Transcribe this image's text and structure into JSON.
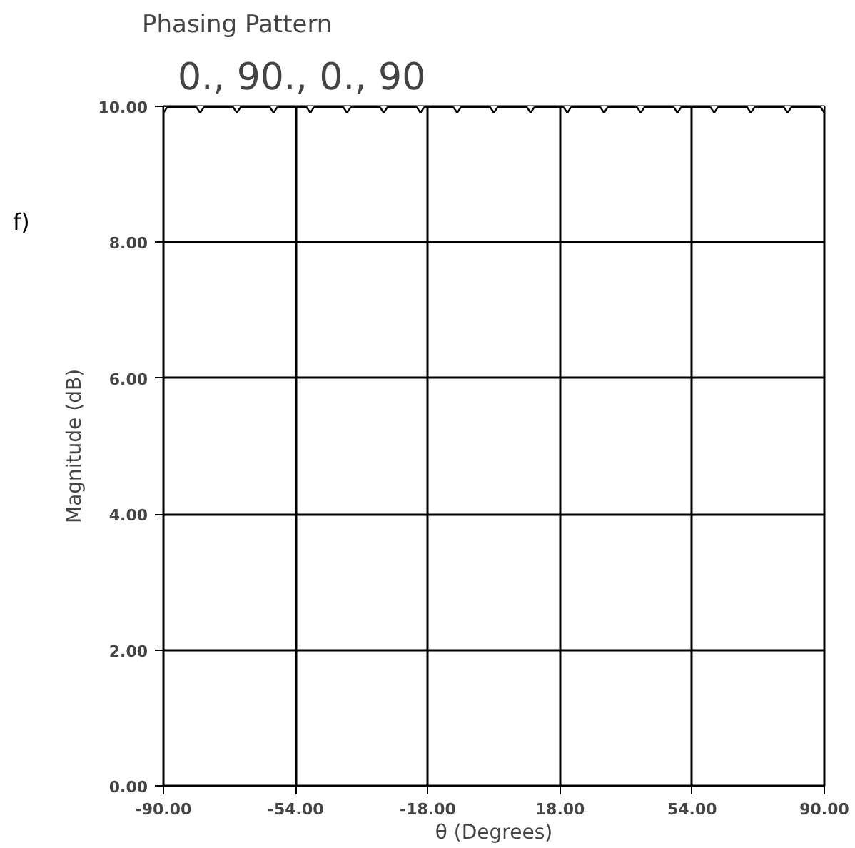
{
  "chart_data": {
    "type": "line",
    "title": "Phasing Pattern",
    "subtitle": "0.,   90.,   0.,   90",
    "annotations": [
      "f)"
    ],
    "xlabel": "θ (Degrees)",
    "ylabel": "Magnitude (dB)",
    "x": [
      -90,
      -80,
      -70,
      -60,
      -50,
      -40,
      -30,
      -20,
      -10,
      0,
      10,
      20,
      30,
      40,
      50,
      60,
      70,
      80,
      90
    ],
    "series": [
      {
        "color": "#000000",
        "values": [
          10,
          10,
          10,
          10,
          10,
          10,
          10,
          10,
          10,
          10,
          10,
          10,
          10,
          10,
          10,
          10,
          10,
          10,
          10
        ]
      }
    ],
    "xlim": [
      -90,
      90
    ],
    "ylim": [
      0,
      10
    ],
    "xticks": [
      {
        "value": -90,
        "label": "-90.00"
      },
      {
        "value": -54,
        "label": "-54.00"
      },
      {
        "value": -18,
        "label": "-18.00"
      },
      {
        "value": 18,
        "label": "18.00"
      },
      {
        "value": 54,
        "label": "54.00"
      },
      {
        "value": 90,
        "label": "90.00"
      }
    ],
    "yticks": [
      {
        "value": 0,
        "label": "0.00"
      },
      {
        "value": 2,
        "label": "2.00"
      },
      {
        "value": 4,
        "label": "4.00"
      },
      {
        "value": 6,
        "label": "6.00"
      },
      {
        "value": 8,
        "label": "8.00"
      },
      {
        "value": 10,
        "label": "10.00"
      }
    ],
    "grid": true,
    "marker": "diamond",
    "line_style": "solid"
  }
}
